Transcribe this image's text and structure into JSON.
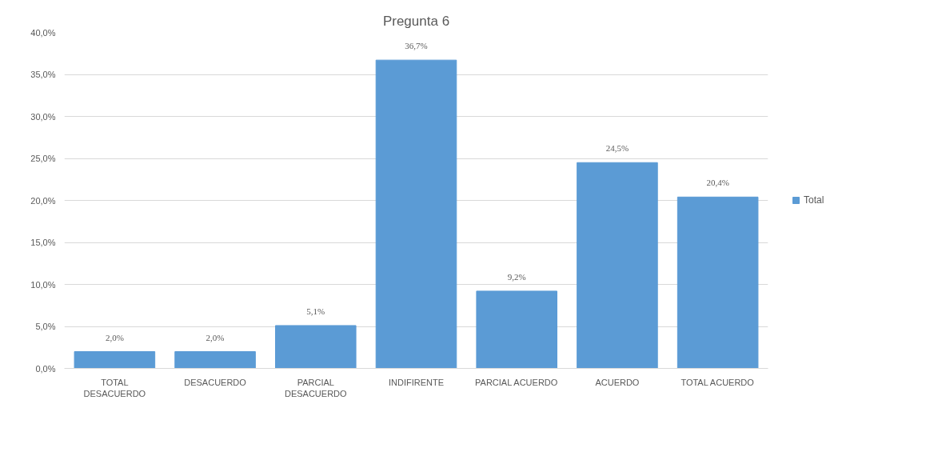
{
  "chart_data": {
    "type": "bar",
    "title": "Pregunta 6",
    "categories": [
      "TOTAL DESACUERDO",
      "DESACUERDO",
      "PARCIAL DESACUERDO",
      "INDIFIRENTE",
      "PARCIAL ACUERDO",
      "ACUERDO",
      "TOTAL ACUERDO"
    ],
    "series": [
      {
        "name": "Total",
        "color": "#5b9bd5",
        "values": [
          2.0,
          2.0,
          5.1,
          36.7,
          9.2,
          24.5,
          20.4
        ],
        "value_labels": [
          "2,0%",
          "2,0%",
          "5,1%",
          "36,7%",
          "9,2%",
          "24,5%",
          "20,4%"
        ]
      }
    ],
    "ylim": [
      0,
      40
    ],
    "yticks": [
      {
        "value": 0,
        "label": "0,0%"
      },
      {
        "value": 5,
        "label": "5,0%"
      },
      {
        "value": 10,
        "label": "10,0%"
      },
      {
        "value": 15,
        "label": "15,0%"
      },
      {
        "value": 20,
        "label": "20,0%"
      },
      {
        "value": 25,
        "label": "25,0%"
      },
      {
        "value": 30,
        "label": "30,0%"
      },
      {
        "value": 35,
        "label": "35,0%"
      },
      {
        "value": 40,
        "label": "40,0%"
      }
    ],
    "grid": "y",
    "legend": "right"
  }
}
